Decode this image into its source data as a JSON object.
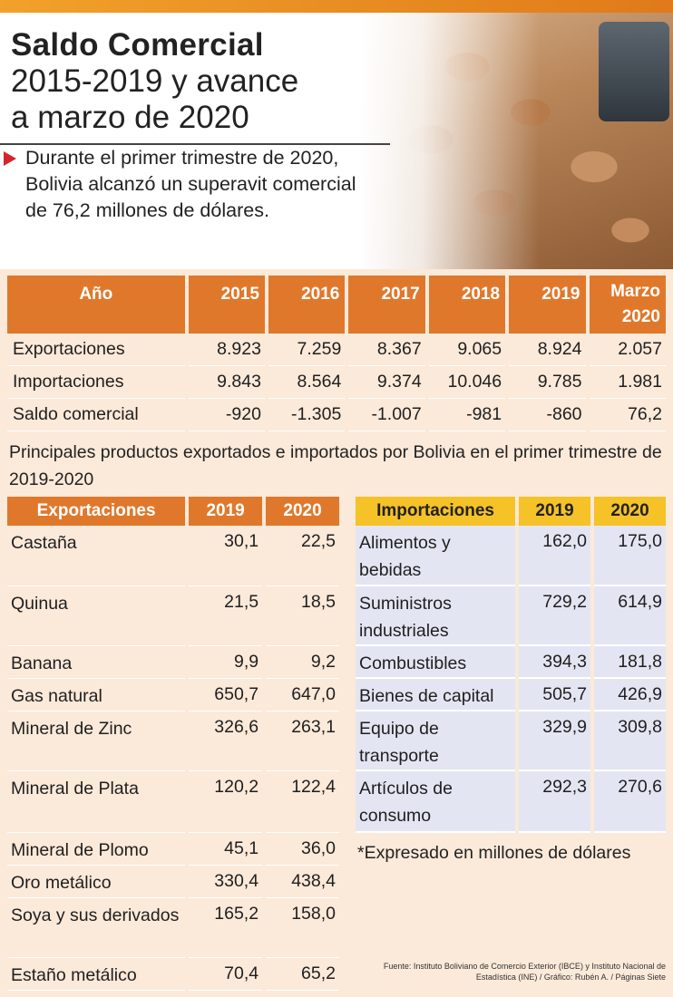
{
  "header": {
    "title_bold": "Saldo Comercial",
    "title_line2": "2015-2019 y avance",
    "title_line3": "a marzo de 2020",
    "lead": "Durante el primer trimestre de 2020, Bolivia alcanzó un superavit comercial de 76,2 millones de dólares."
  },
  "main_table": {
    "headers": [
      "Año",
      "2015",
      "2016",
      "2017",
      "2018",
      "2019",
      "Marzo 2020"
    ],
    "rows": [
      [
        "Exportaciones",
        "8.923",
        "7.259",
        "8.367",
        "9.065",
        "8.924",
        "2.057"
      ],
      [
        "Importaciones",
        "9.843",
        "8.564",
        "9.374",
        "10.046",
        "9.785",
        "1.981"
      ],
      [
        "Saldo comercial",
        "-920",
        "-1.305",
        "-1.007",
        "-981",
        "-860",
        "76,2"
      ]
    ]
  },
  "subtitle": "Principales productos exportados e importados por Bolivia en el primer trimestre de 2019-2020",
  "exports": {
    "headers": [
      "Exportaciones",
      "2019",
      "2020"
    ],
    "rows": [
      [
        "Castaña",
        "30,1",
        "22,5"
      ],
      [
        "Quinua",
        "21,5",
        "18,5"
      ],
      [
        "Banana",
        "9,9",
        "9,2"
      ],
      [
        "Gas natural",
        "650,7",
        "647,0"
      ],
      [
        "Mineral de Zinc",
        "326,6",
        "263,1"
      ],
      [
        "Mineral de Plata",
        "120,2",
        "122,4"
      ],
      [
        "Mineral de Plomo",
        "45,1",
        "36,0"
      ],
      [
        "Oro metálico",
        "330,4",
        "438,4"
      ],
      [
        "Soya y sus derivados",
        "165,2",
        "158,0"
      ],
      [
        "Estaño metálico",
        "70,4",
        "65,2"
      ]
    ]
  },
  "imports": {
    "headers": [
      "Importaciones",
      "2019",
      "2020"
    ],
    "rows": [
      [
        "Alimentos y bebidas",
        "162,0",
        "175,0"
      ],
      [
        "Suministros industriales",
        "729,2",
        "614,9"
      ],
      [
        "Combustibles",
        "394,3",
        "181,8"
      ],
      [
        "Bienes de capital",
        "505,7",
        "426,9"
      ],
      [
        "Equipo de transporte",
        "329,9",
        "309,8"
      ],
      [
        "Artículos de consumo",
        "292,3",
        "270,6"
      ]
    ]
  },
  "note": "*Expresado en millones de dólares",
  "source": "Fuente: Instituto Boliviano de Comercio Exterior (IBCE) y Instituto Nacional de Estadística (INE) / Gráfico: Rubén A. / Páginas Siete",
  "colors": {
    "orange": "#e0782c",
    "yellow": "#f5c227",
    "peach": "#fbe9d9",
    "lavender": "#e3e6f2",
    "red": "#d8232a"
  }
}
